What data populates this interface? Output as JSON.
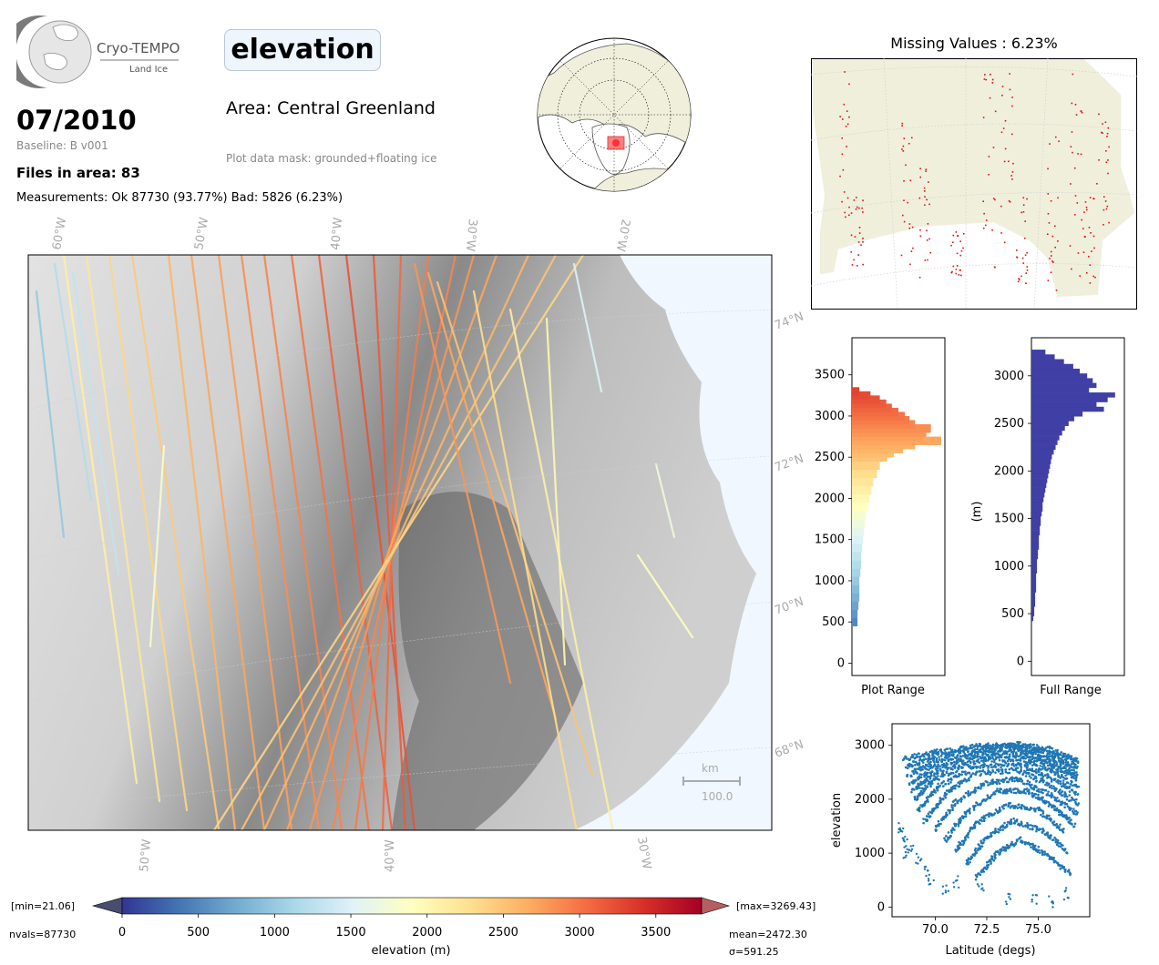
{
  "header": {
    "logo_text": "Cryo-TEMPO",
    "logo_subtext": "Land Ice",
    "date": "07/2010",
    "baseline": "Baseline: B v001",
    "files": "Files in area: 83",
    "measurements": "Measurements: Ok 87730 (93.77%) Bad: 5826 (6.23%)",
    "parameter": "elevation",
    "area": "Area: Central Greenland",
    "mask": "Plot data mask: grounded+floating ice"
  },
  "main_map": {
    "top_lon_labels": [
      "60°W",
      "50°W",
      "40°W",
      "30°W",
      "20°W"
    ],
    "bottom_lon_labels": [
      "50°W",
      "40°W",
      "30°W"
    ],
    "lat_labels": [
      "74°N",
      "72°N",
      "70°N",
      "68°N"
    ],
    "scale_unit": "km",
    "scale_value": "100.0"
  },
  "colorbar": {
    "min_label": "[min=21.06]",
    "max_label": "[max=3269.43]",
    "nvals": "nvals=87730",
    "mean": "mean=2472.30",
    "sigma": "σ=591.25",
    "label": "elevation (m)",
    "range": [
      0,
      3800
    ],
    "ticks": [
      "0",
      "500",
      "1000",
      "1500",
      "2000",
      "2500",
      "3000",
      "3500"
    ],
    "colors": [
      "#313695",
      "#4575b4",
      "#74add1",
      "#abd9e9",
      "#e0f3f8",
      "#ffffbf",
      "#fee090",
      "#fdae61",
      "#f46d43",
      "#d73027",
      "#a50026"
    ]
  },
  "missing": {
    "title": "Missing Values : 6.23%"
  },
  "chart_data": [
    {
      "type": "bar",
      "orientation": "horizontal",
      "xlabel": "Plot Range",
      "ylim": [
        -150,
        3950
      ],
      "y_ticks": [
        "0",
        "500",
        "1000",
        "1500",
        "2000",
        "2500",
        "3000",
        "3500"
      ],
      "bins": [
        [
          500,
          0.06
        ],
        [
          600,
          0.06
        ],
        [
          700,
          0.07
        ],
        [
          800,
          0.08
        ],
        [
          900,
          0.08
        ],
        [
          1000,
          0.08
        ],
        [
          1100,
          0.09
        ],
        [
          1200,
          0.1
        ],
        [
          1300,
          0.1
        ],
        [
          1400,
          0.11
        ],
        [
          1500,
          0.12
        ],
        [
          1600,
          0.13
        ],
        [
          1700,
          0.14
        ],
        [
          1800,
          0.15
        ],
        [
          1900,
          0.17
        ],
        [
          2000,
          0.19
        ],
        [
          2100,
          0.21
        ],
        [
          2200,
          0.23
        ],
        [
          2300,
          0.27
        ],
        [
          2400,
          0.3
        ],
        [
          2500,
          0.38
        ],
        [
          2550,
          0.45
        ],
        [
          2600,
          0.55
        ],
        [
          2650,
          0.68
        ],
        [
          2700,
          0.96
        ],
        [
          2750,
          0.77
        ],
        [
          2800,
          0.8
        ],
        [
          2850,
          0.85
        ],
        [
          2900,
          0.68
        ],
        [
          2950,
          0.62
        ],
        [
          3000,
          0.57
        ],
        [
          3050,
          0.5
        ],
        [
          3100,
          0.43
        ],
        [
          3150,
          0.37
        ],
        [
          3200,
          0.3
        ],
        [
          3250,
          0.2
        ],
        [
          3300,
          0.08
        ]
      ]
    },
    {
      "type": "bar",
      "orientation": "horizontal",
      "xlabel": "Full Range",
      "ylabel": "(m)",
      "ylim": [
        -150,
        3400
      ],
      "y_ticks": [
        "0",
        "500",
        "1000",
        "1500",
        "2000",
        "2500",
        "3000"
      ],
      "bins": [
        [
          450,
          0.02
        ],
        [
          500,
          0.03
        ],
        [
          550,
          0.03
        ],
        [
          600,
          0.04
        ],
        [
          650,
          0.04
        ],
        [
          700,
          0.04
        ],
        [
          750,
          0.05
        ],
        [
          800,
          0.05
        ],
        [
          850,
          0.05
        ],
        [
          900,
          0.05
        ],
        [
          950,
          0.06
        ],
        [
          1000,
          0.06
        ],
        [
          1050,
          0.06
        ],
        [
          1100,
          0.07
        ],
        [
          1150,
          0.07
        ],
        [
          1200,
          0.08
        ],
        [
          1250,
          0.08
        ],
        [
          1300,
          0.08
        ],
        [
          1350,
          0.09
        ],
        [
          1400,
          0.09
        ],
        [
          1450,
          0.1
        ],
        [
          1500,
          0.1
        ],
        [
          1550,
          0.11
        ],
        [
          1600,
          0.12
        ],
        [
          1650,
          0.12
        ],
        [
          1700,
          0.13
        ],
        [
          1750,
          0.14
        ],
        [
          1800,
          0.15
        ],
        [
          1850,
          0.16
        ],
        [
          1900,
          0.17
        ],
        [
          1950,
          0.18
        ],
        [
          2000,
          0.19
        ],
        [
          2050,
          0.2
        ],
        [
          2100,
          0.21
        ],
        [
          2150,
          0.22
        ],
        [
          2200,
          0.24
        ],
        [
          2250,
          0.26
        ],
        [
          2300,
          0.28
        ],
        [
          2350,
          0.3
        ],
        [
          2400,
          0.33
        ],
        [
          2450,
          0.36
        ],
        [
          2500,
          0.4
        ],
        [
          2550,
          0.46
        ],
        [
          2600,
          0.55
        ],
        [
          2650,
          0.78
        ],
        [
          2700,
          0.7
        ],
        [
          2750,
          0.82
        ],
        [
          2800,
          0.9
        ],
        [
          2850,
          0.62
        ],
        [
          2900,
          0.7
        ],
        [
          2950,
          0.66
        ],
        [
          3000,
          0.6
        ],
        [
          3050,
          0.52
        ],
        [
          3100,
          0.45
        ],
        [
          3150,
          0.35
        ],
        [
          3200,
          0.25
        ],
        [
          3250,
          0.15
        ]
      ]
    },
    {
      "type": "scatter",
      "xlabel": "Latitude (degs)",
      "ylabel": "elevation",
      "xlim": [
        67.9,
        77.5
      ],
      "ylim": [
        -180,
        3400
      ],
      "x_ticks": [
        "70.0",
        "72.5",
        "75.0"
      ],
      "y_ticks": [
        "0",
        "1000",
        "2000",
        "3000"
      ],
      "tracks": [
        [
          [
            68.5,
            2750
          ],
          [
            70,
            2870
          ],
          [
            72,
            2980
          ],
          [
            74,
            3020
          ],
          [
            75.5,
            2930
          ],
          [
            77,
            2720
          ]
        ],
        [
          [
            68.6,
            2600
          ],
          [
            70,
            2800
          ],
          [
            72,
            2950
          ],
          [
            74,
            3000
          ],
          [
            75.5,
            2870
          ],
          [
            77,
            2650
          ]
        ],
        [
          [
            68.7,
            2450
          ],
          [
            70,
            2700
          ],
          [
            72,
            2900
          ],
          [
            74,
            2960
          ],
          [
            75.5,
            2800
          ],
          [
            77,
            2560
          ]
        ],
        [
          [
            68.8,
            2300
          ],
          [
            70,
            2600
          ],
          [
            72,
            2850
          ],
          [
            74,
            2900
          ],
          [
            75.5,
            2720
          ],
          [
            77,
            2460
          ]
        ],
        [
          [
            68.9,
            2150
          ],
          [
            70,
            2500
          ],
          [
            72,
            2780
          ],
          [
            74,
            2840
          ],
          [
            75.5,
            2640
          ],
          [
            77,
            2360
          ]
        ],
        [
          [
            69.0,
            2000
          ],
          [
            70,
            2380
          ],
          [
            72,
            2700
          ],
          [
            74,
            2760
          ],
          [
            75.5,
            2540
          ],
          [
            77,
            2230
          ]
        ],
        [
          [
            69.2,
            1800
          ],
          [
            70.2,
            2250
          ],
          [
            72,
            2600
          ],
          [
            74,
            2660
          ],
          [
            75.5,
            2420
          ],
          [
            77,
            2080
          ]
        ],
        [
          [
            69.5,
            1600
          ],
          [
            70.5,
            2100
          ],
          [
            72,
            2480
          ],
          [
            74,
            2540
          ],
          [
            75.5,
            2280
          ],
          [
            77,
            1900
          ]
        ],
        [
          [
            70,
            1450
          ],
          [
            71,
            1950
          ],
          [
            72.5,
            2300
          ],
          [
            74,
            2380
          ],
          [
            75.5,
            2100
          ],
          [
            77,
            1700
          ]
        ],
        [
          [
            70.5,
            1250
          ],
          [
            71.5,
            1750
          ],
          [
            73,
            2150
          ],
          [
            74.5,
            2150
          ],
          [
            75.8,
            1850
          ],
          [
            76.8,
            1500
          ]
        ],
        [
          [
            71,
            1050
          ],
          [
            72,
            1550
          ],
          [
            73.5,
            1900
          ],
          [
            75,
            1800
          ],
          [
            76.3,
            1400
          ]
        ],
        [
          [
            71.5,
            800
          ],
          [
            72.5,
            1300
          ],
          [
            73.8,
            1600
          ],
          [
            75.3,
            1400
          ],
          [
            76.5,
            1000
          ]
        ],
        [
          [
            72,
            550
          ],
          [
            73,
            1000
          ],
          [
            74.2,
            1250
          ],
          [
            75.5,
            950
          ],
          [
            76.6,
            600
          ]
        ]
      ],
      "low_points": [
        [
          68.3,
          1500
        ],
        [
          68.4,
          1350
        ],
        [
          68.5,
          1200
        ],
        [
          68.8,
          1100
        ],
        [
          69.2,
          900
        ],
        [
          69.8,
          500
        ],
        [
          70.5,
          350
        ],
        [
          72.2,
          300
        ],
        [
          73.5,
          150
        ],
        [
          74.8,
          120
        ],
        [
          75.6,
          100
        ],
        [
          76.4,
          250
        ],
        [
          68.6,
          1000
        ],
        [
          69.5,
          650
        ],
        [
          71.0,
          450
        ]
      ]
    }
  ]
}
